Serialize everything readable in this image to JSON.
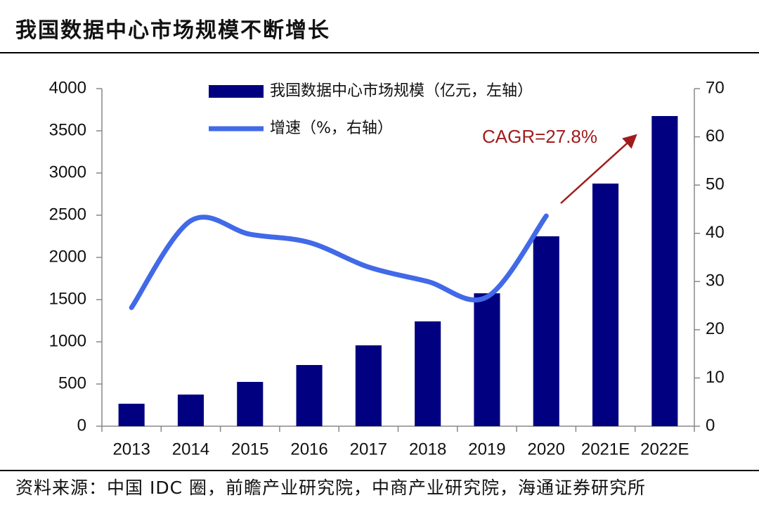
{
  "chart_data": {
    "type": "bar",
    "title": "我国数据中心市场规模不断增长",
    "categories": [
      "2013",
      "2014",
      "2015",
      "2016",
      "2017",
      "2018",
      "2019",
      "2020",
      "2021E",
      "2022E"
    ],
    "series": [
      {
        "name": "我国数据中心市场规模（亿元，左轴）",
        "type": "bar",
        "color": "#000080",
        "values": [
          266,
          375,
          525,
          725,
          958,
          1242,
          1575,
          2250,
          2875,
          3675
        ]
      },
      {
        "name": "增速（%，右轴）",
        "type": "line",
        "axis": "y2",
        "color": "#4169e8",
        "values": [
          24.6,
          42.6,
          39.8,
          38.1,
          33.0,
          30.0,
          26.8,
          43.6,
          null,
          null
        ]
      }
    ],
    "ylim": [
      0,
      4000
    ],
    "yticks": [
      0,
      500,
      1000,
      1500,
      2000,
      2500,
      3000,
      3500,
      4000
    ],
    "y2lim": [
      0,
      70
    ],
    "y2ticks": [
      0,
      10,
      20,
      30,
      40,
      50,
      60,
      70
    ],
    "annotation": "CAGR=27.8%",
    "source": "资料来源：中国 IDC 圈，前瞻产业研究院，中商产业研究院，海通证券研究所"
  }
}
